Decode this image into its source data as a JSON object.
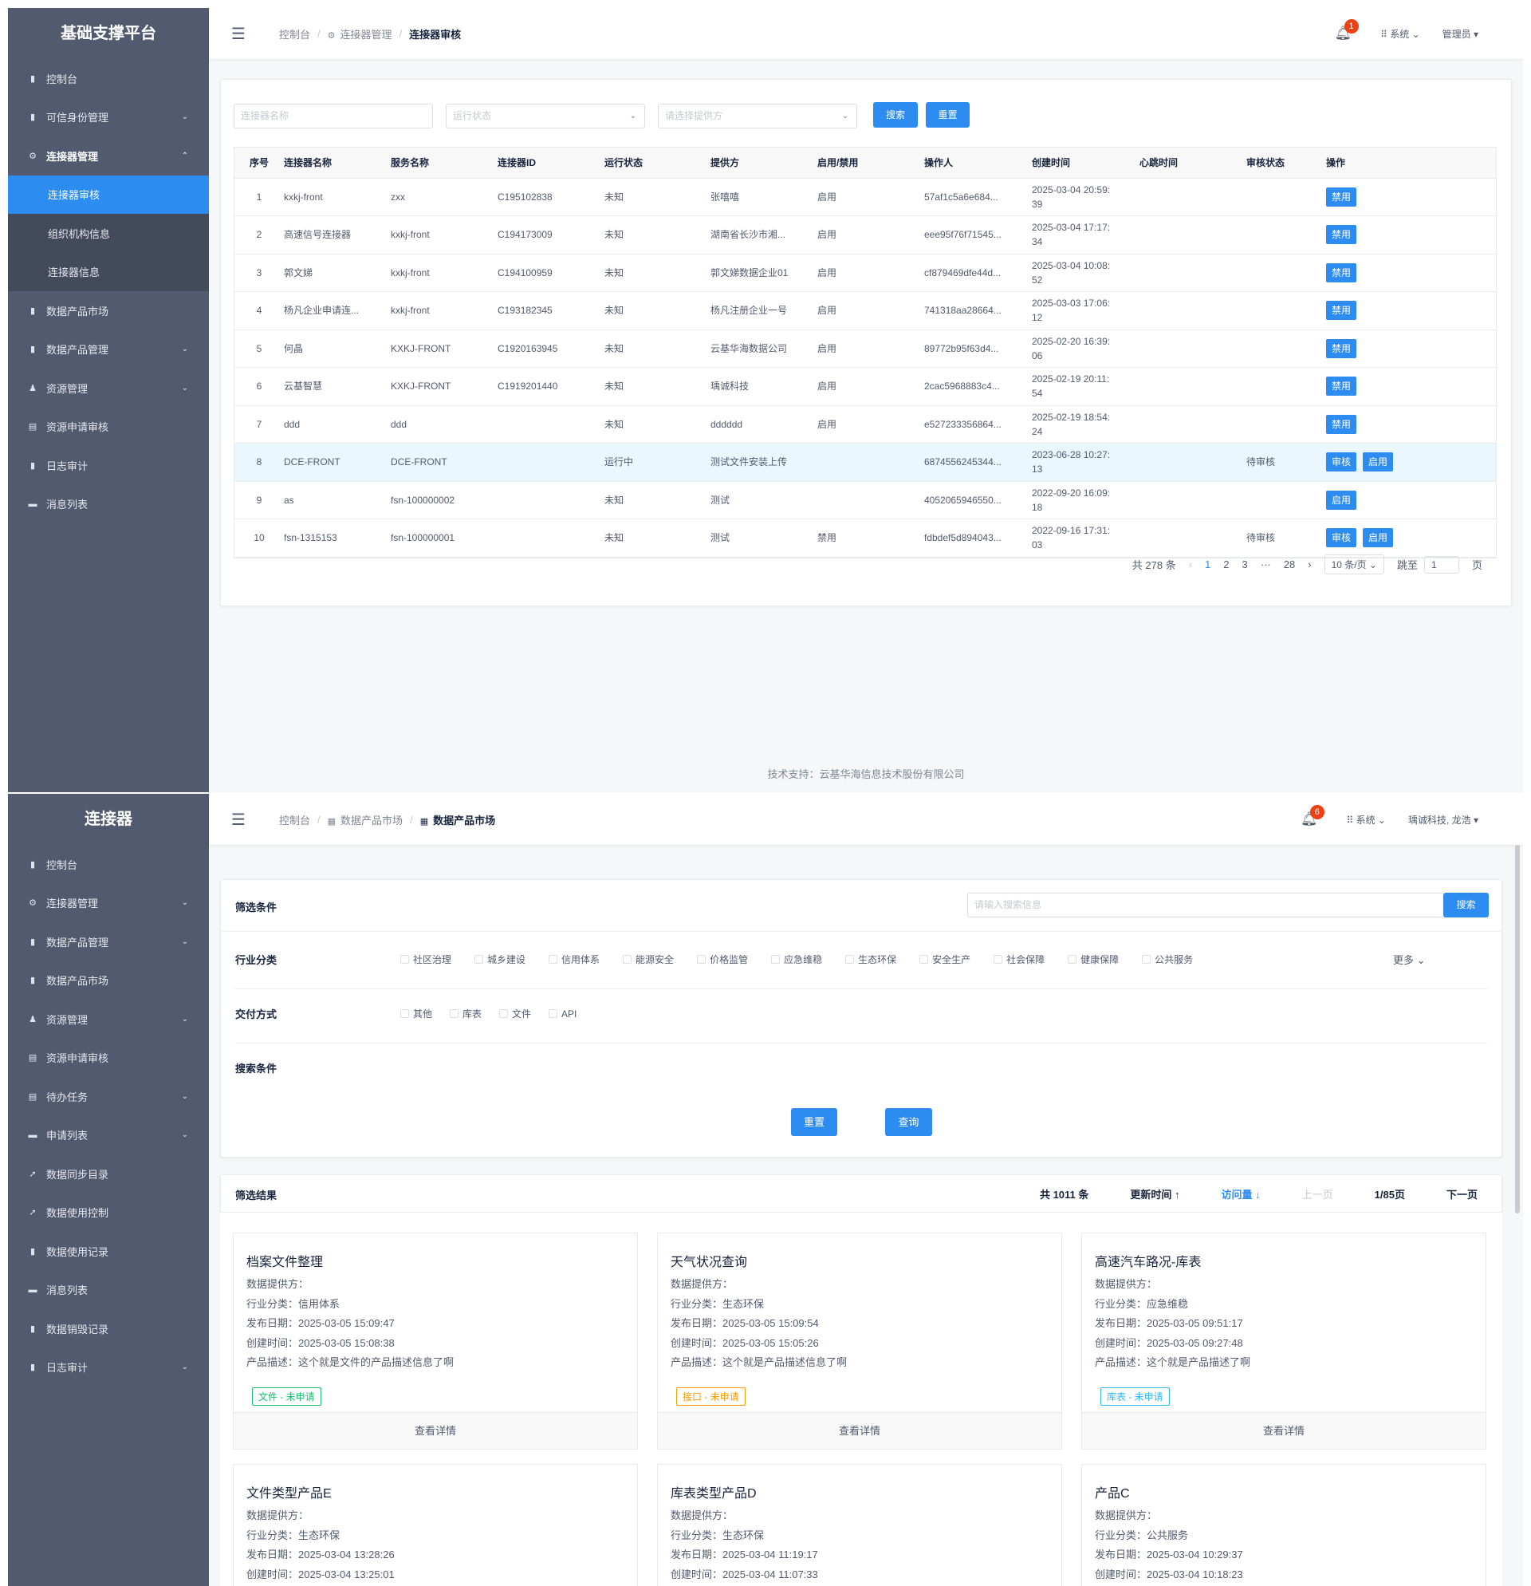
{
  "s1": {
    "logo": "基础支撑平台",
    "sidebar": [
      {
        "label": "控制台",
        "icon": "▮"
      },
      {
        "label": "可信身份管理",
        "icon": "▮",
        "chev": "⌄"
      },
      {
        "label": "连接器管理",
        "icon": "⚙",
        "chev": "⌃",
        "open": true
      },
      {
        "label": "连接器审核",
        "sub": true,
        "active": true
      },
      {
        "label": "组织机构信息",
        "sub": true
      },
      {
        "label": "连接器信息",
        "sub": true
      },
      {
        "label": "数据产品市场",
        "icon": "▮"
      },
      {
        "label": "数据产品管理",
        "icon": "▮",
        "chev": "⌄"
      },
      {
        "label": "资源管理",
        "icon": "♟",
        "chev": "⌄"
      },
      {
        "label": "资源申请审核",
        "icon": "▤"
      },
      {
        "label": "日志审计",
        "icon": "▮"
      },
      {
        "label": "消息列表",
        "icon": "▬"
      }
    ],
    "breadcrumb": [
      {
        "label": "控制台"
      },
      {
        "label": "连接器管理",
        "icon": "⚙"
      },
      {
        "label": "连接器审核"
      }
    ],
    "bell_count": "1",
    "system": "系统",
    "user": "管理员",
    "filters": {
      "name_placeholder": "连接器名称",
      "status_placeholder": "运行状态",
      "provider_placeholder": "请选择提供方",
      "search": "搜索",
      "reset": "重置"
    },
    "columns": [
      "序号",
      "连接器名称",
      "服务名称",
      "连接器ID",
      "运行状态",
      "提供方",
      "启用/禁用",
      "操作人",
      "创建时间",
      "心跳时间",
      "审核状态",
      "操作"
    ],
    "rows": [
      {
        "no": "1",
        "name": "kxkj-front",
        "service": "zxx",
        "id": "C195102838",
        "status": "未知",
        "provider": "张嘻嘻",
        "enabled": "启用",
        "operator": "57af1c5a6e684...",
        "created": "2025-03-04 20:59:",
        "created2": "39",
        "heartbeat": "",
        "audit": "",
        "actions": [
          "禁用"
        ]
      },
      {
        "no": "2",
        "name": "高速信号连接器",
        "service": "kxkj-front",
        "id": "C194173009",
        "status": "未知",
        "provider": "湖南省长沙市湘...",
        "enabled": "启用",
        "operator": "eee95f76f71545...",
        "created": "2025-03-04 17:17:",
        "created2": "34",
        "heartbeat": "",
        "audit": "",
        "actions": [
          "禁用"
        ]
      },
      {
        "no": "3",
        "name": "郭文娣",
        "service": "kxkj-front",
        "id": "C194100959",
        "status": "未知",
        "provider": "郭文娣数据企业01",
        "enabled": "启用",
        "operator": "cf879469dfe44d...",
        "created": "2025-03-04 10:08:",
        "created2": "52",
        "heartbeat": "",
        "audit": "",
        "actions": [
          "禁用"
        ]
      },
      {
        "no": "4",
        "name": "杨凡企业申请连...",
        "service": "kxkj-front",
        "id": "C193182345",
        "status": "未知",
        "provider": "杨凡注册企业一号",
        "enabled": "启用",
        "operator": "741318aa28664...",
        "created": "2025-03-03 17:06:",
        "created2": "12",
        "heartbeat": "",
        "audit": "",
        "actions": [
          "禁用"
        ]
      },
      {
        "no": "5",
        "name": "何晶",
        "service": "KXKJ-FRONT",
        "id": "C1920163945",
        "status": "未知",
        "provider": "云基华海数据公司",
        "enabled": "启用",
        "operator": "89772b95f63d4...",
        "created": "2025-02-20 16:39:",
        "created2": "06",
        "heartbeat": "",
        "audit": "",
        "actions": [
          "禁用"
        ]
      },
      {
        "no": "6",
        "name": "云基智慧",
        "service": "KXKJ-FRONT",
        "id": "C1919201440",
        "status": "未知",
        "provider": "瑀诚科技",
        "enabled": "启用",
        "operator": "2cac5968883c4...",
        "created": "2025-02-19 20:11:",
        "created2": "54",
        "heartbeat": "",
        "audit": "",
        "actions": [
          "禁用"
        ]
      },
      {
        "no": "7",
        "name": "ddd",
        "service": "ddd",
        "id": "",
        "status": "未知",
        "provider": "dddddd",
        "enabled": "启用",
        "operator": "e527233356864...",
        "created": "2025-02-19 18:54:",
        "created2": "24",
        "heartbeat": "",
        "audit": "",
        "actions": [
          "禁用"
        ]
      },
      {
        "no": "8",
        "name": "DCE-FRONT",
        "service": "DCE-FRONT",
        "id": "",
        "status": "运行中",
        "provider": "测试文件安装上传",
        "enabled": "",
        "operator": "6874556245344...",
        "created": "2023-06-28 10:27:",
        "created2": "13",
        "heartbeat": "",
        "audit": "待审核",
        "actions": [
          "审核",
          "启用"
        ],
        "highlight": true
      },
      {
        "no": "9",
        "name": "as",
        "service": "fsn-100000002",
        "id": "",
        "status": "未知",
        "provider": "测试",
        "enabled": "",
        "operator": "4052065946550...",
        "created": "2022-09-20 16:09:",
        "created2": "18",
        "heartbeat": "",
        "audit": "",
        "actions": [
          "启用"
        ]
      },
      {
        "no": "10",
        "name": "fsn-1315153",
        "service": "fsn-100000001",
        "id": "",
        "status": "未知",
        "provider": "测试",
        "enabled": "禁用",
        "operator": "fdbdef5d894043...",
        "created": "2022-09-16 17:31:",
        "created2": "03",
        "heartbeat": "",
        "audit": "待审核",
        "actions": [
          "审核",
          "启用"
        ]
      }
    ],
    "pagination": {
      "total": "共 278 条",
      "prev": "‹",
      "pages": [
        "1",
        "2",
        "3",
        "···",
        "28"
      ],
      "current": "1",
      "next": "›",
      "page_size": "10 条/页 ⌄",
      "jump": "跳至",
      "jump_value": "1",
      "page_unit": "页"
    },
    "footer": "技术支持：云基华海信息技术股份有限公司"
  },
  "s2": {
    "logo": "连接器",
    "sidebar": [
      {
        "label": "控制台",
        "icon": "▮"
      },
      {
        "label": "连接器管理",
        "icon": "⚙",
        "chev": "⌄"
      },
      {
        "label": "数据产品管理",
        "icon": "▮",
        "chev": "⌄"
      },
      {
        "label": "数据产品市场",
        "icon": "▮"
      },
      {
        "label": "资源管理",
        "icon": "♟",
        "chev": "⌄"
      },
      {
        "label": "资源申请审核",
        "icon": "▤"
      },
      {
        "label": "待办任务",
        "icon": "▤",
        "chev": "⌄"
      },
      {
        "label": "申请列表",
        "icon": "▬",
        "chev": "⌄"
      },
      {
        "label": "数据同步目录",
        "icon": "➚"
      },
      {
        "label": "数据使用控制",
        "icon": "➚"
      },
      {
        "label": "数据使用记录",
        "icon": "▮"
      },
      {
        "label": "消息列表",
        "icon": "▬"
      },
      {
        "label": "数据销毁记录",
        "icon": "▮"
      },
      {
        "label": "日志审计",
        "icon": "▮",
        "chev": "⌄"
      }
    ],
    "breadcrumb": [
      {
        "label": "控制台"
      },
      {
        "label": "数据产品市场",
        "icon": "▦"
      },
      {
        "label": "数据产品市场",
        "icon": "▦"
      }
    ],
    "bell_count": "6",
    "system": "系统",
    "user": "瑀诚科技, 龙浩",
    "filter": {
      "title": "筛选条件",
      "search_placeholder": "请输入搜索信息",
      "search": "搜索",
      "industry_label": "行业分类",
      "industries": [
        "社区治理",
        "城乡建设",
        "信用体系",
        "能源安全",
        "价格监管",
        "应急维稳",
        "生态环保",
        "安全生产",
        "社会保障",
        "健康保障",
        "公共服务"
      ],
      "more": "更多 ⌄",
      "delivery_label": "交付方式",
      "deliveries": [
        "其他",
        "库表",
        "文件",
        "API"
      ],
      "search_cond_label": "搜索条件",
      "reset": "重置",
      "query": "查询"
    },
    "results": {
      "title": "筛选结果",
      "total": "共 1011 条",
      "sort_update": "更新时间 ↑",
      "sort_visit": "访问量 ↓",
      "prev": "上一页",
      "page": "1/85页",
      "next": "下一页"
    },
    "products": [
      {
        "title": "档案文件整理",
        "provider": "数据提供方：",
        "industry": "行业分类：信用体系",
        "publish": "发布日期：2025-03-05 15:09:47",
        "created": "创建时间：2025-03-05 15:08:38",
        "desc": "产品描述：这个就是文件的产品描述信息了啊",
        "tag": "文件 - 未申请",
        "tag_color": "#19be6b",
        "detail": "查看详情"
      },
      {
        "title": "天气状况查询",
        "provider": "数据提供方：",
        "industry": "行业分类：生态环保",
        "publish": "发布日期：2025-03-05 15:09:54",
        "created": "创建时间：2025-03-05 15:05:26",
        "desc": "产品描述：这个就是产品描述信息了啊",
        "tag": "接口 - 未申请",
        "tag_color": "#ff9900",
        "detail": "查看详情"
      },
      {
        "title": "高速汽车路况-库表",
        "provider": "数据提供方：",
        "industry": "行业分类：应急维稳",
        "publish": "发布日期：2025-03-05 09:51:17",
        "created": "创建时间：2025-03-05 09:27:48",
        "desc": "产品描述：这个就是产品描述了啊",
        "tag": "库表 - 未申请",
        "tag_color": "#2db7f5",
        "detail": "查看详情"
      },
      {
        "title": "文件类型产品E",
        "provider": "数据提供方：",
        "industry": "行业分类：生态环保",
        "publish": "发布日期：2025-03-04 13:28:26",
        "created": "创建时间：2025-03-04 13:25:01"
      },
      {
        "title": "库表类型产品D",
        "provider": "数据提供方：",
        "industry": "行业分类：生态环保",
        "publish": "发布日期：2025-03-04 11:19:17",
        "created": "创建时间：2025-03-04 11:07:33"
      },
      {
        "title": "产品C",
        "provider": "数据提供方：",
        "industry": "行业分类：公共服务",
        "publish": "发布日期：2025-03-04 10:29:37",
        "created": "创建时间：2025-03-04 10:18:23"
      }
    ]
  }
}
